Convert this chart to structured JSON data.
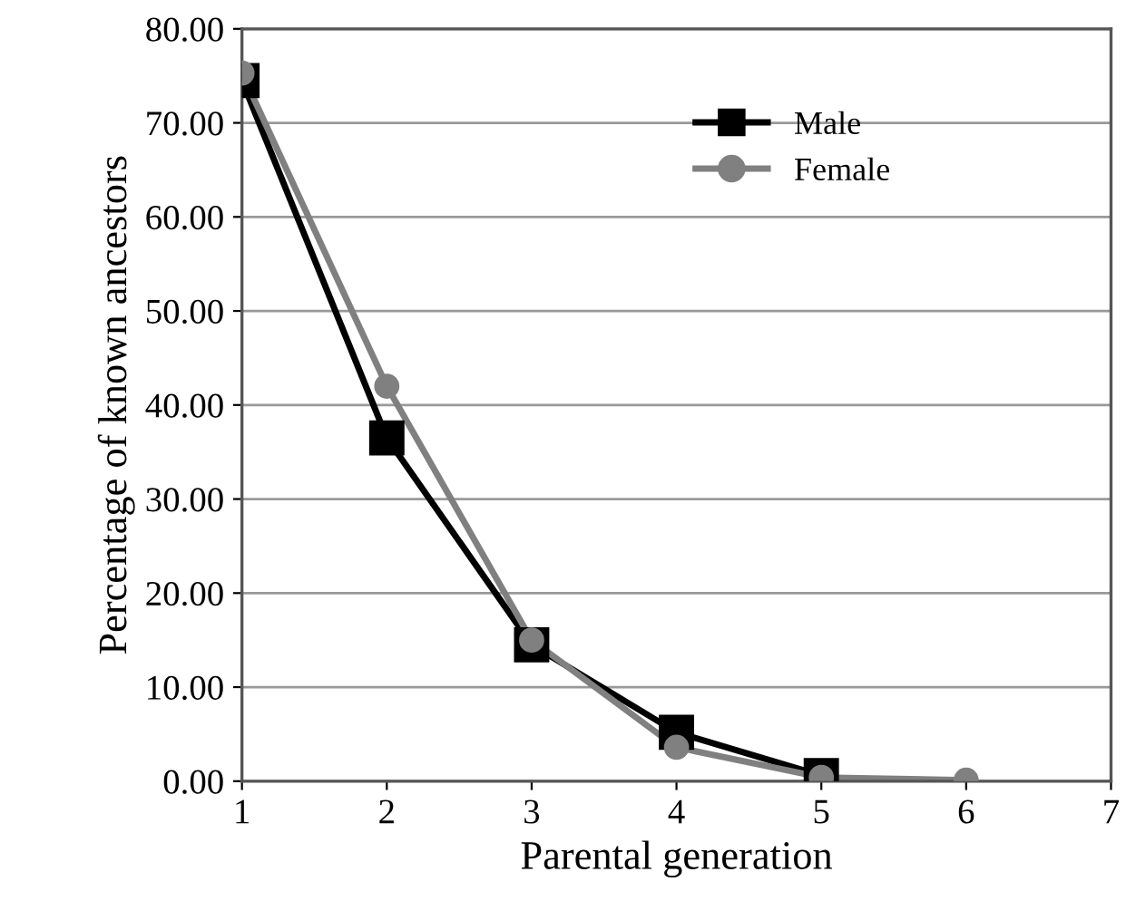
{
  "chart_data": {
    "type": "line",
    "xlabel": "Parental generation",
    "ylabel": "Percentage of known ancestors",
    "xlim": [
      1,
      7
    ],
    "xticks": [
      1,
      2,
      3,
      4,
      5,
      6,
      7
    ],
    "ylim": [
      0,
      80
    ],
    "yticks": [
      {
        "value": 0,
        "label": "0.00"
      },
      {
        "value": 10,
        "label": "10.00"
      },
      {
        "value": 20,
        "label": "20.00"
      },
      {
        "value": 30,
        "label": "30.00"
      },
      {
        "value": 40,
        "label": "40.00"
      },
      {
        "value": 50,
        "label": "50.00"
      },
      {
        "value": 60,
        "label": "60.00"
      },
      {
        "value": 70,
        "label": "70.00"
      },
      {
        "value": 80,
        "label": "80.00"
      }
    ],
    "grid": "y",
    "legend": "top right",
    "line_style": "solid",
    "series": [
      {
        "name": "Male",
        "color": "#000000",
        "marker": "square",
        "x": [
          1,
          2,
          3,
          4,
          5
        ],
        "values": [
          74.5,
          36.5,
          14.5,
          5.2,
          0.6
        ]
      },
      {
        "name": "Female",
        "color": "#808080",
        "marker": "circle",
        "x": [
          1,
          2,
          3,
          4,
          5,
          6
        ],
        "values": [
          75.3,
          42.0,
          15.0,
          3.6,
          0.4,
          0.1
        ]
      }
    ]
  }
}
